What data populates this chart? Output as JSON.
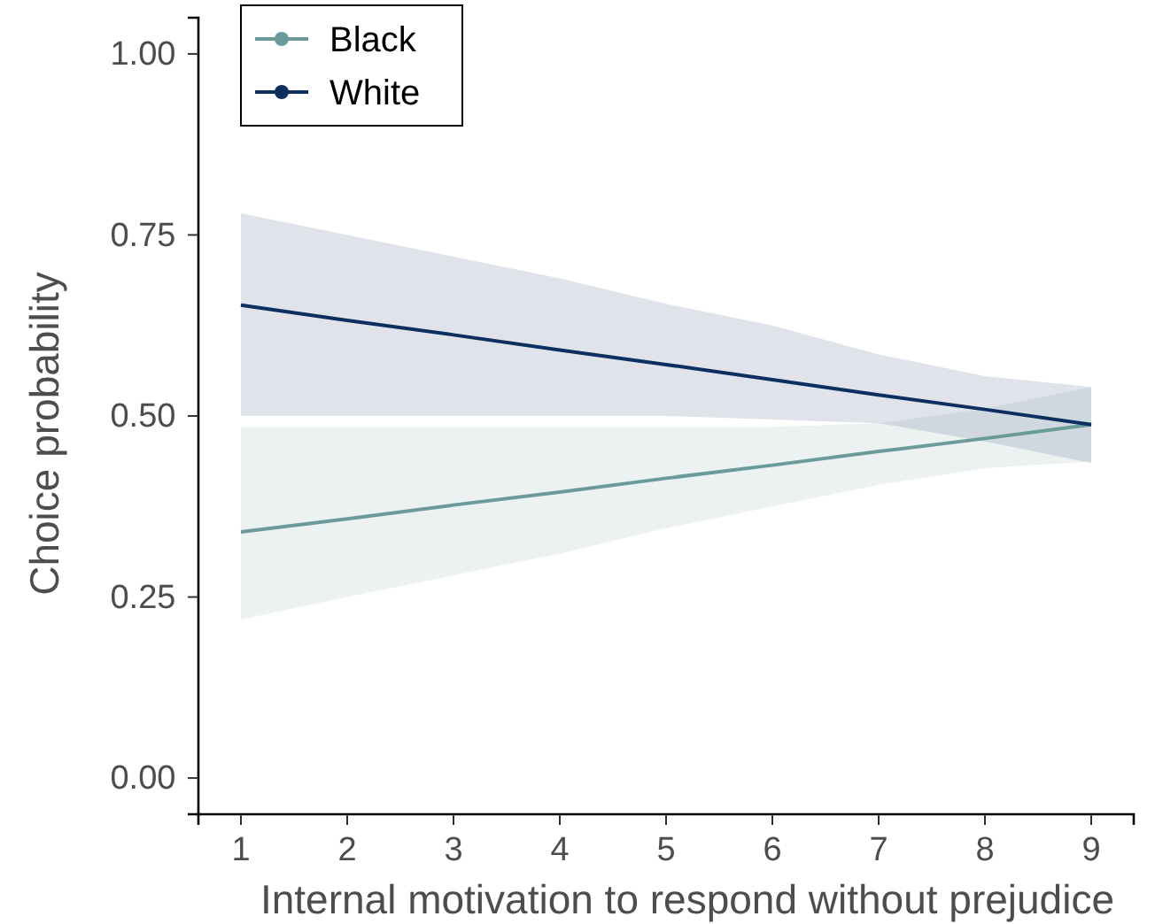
{
  "chart_data": {
    "type": "line",
    "xlabel": "Internal motivation to respond without prejudice",
    "ylabel": "Choice probability",
    "x": [
      1,
      2,
      3,
      4,
      5,
      6,
      7,
      8,
      9
    ],
    "xlim": [
      0.6,
      9.4
    ],
    "xticks": [
      1,
      2,
      3,
      4,
      5,
      6,
      7,
      8,
      9
    ],
    "ylim": [
      -0.05,
      1.05
    ],
    "yticks": [
      {
        "value": 0,
        "label": "0.00"
      },
      {
        "value": 0.25,
        "label": "0.25"
      },
      {
        "value": 0.5,
        "label": "0.50"
      },
      {
        "value": 0.75,
        "label": "0.75"
      },
      {
        "value": 1,
        "label": "1.00"
      }
    ],
    "grid": false,
    "legend": "top left",
    "series": [
      {
        "name": "Black",
        "color": "#6b9a9a",
        "values": [
          0.34,
          0.358,
          0.377,
          0.395,
          0.414,
          0.432,
          0.451,
          0.469,
          0.488
        ],
        "lower": [
          0.219,
          0.25,
          0.28,
          0.31,
          0.345,
          0.375,
          0.405,
          0.428,
          0.437
        ],
        "upper": [
          0.485,
          0.485,
          0.485,
          0.485,
          0.485,
          0.485,
          0.49,
          0.51,
          0.54
        ]
      },
      {
        "name": "White",
        "color": "#0c2f5f",
        "values": [
          0.653,
          0.632,
          0.612,
          0.591,
          0.571,
          0.55,
          0.529,
          0.509,
          0.488
        ],
        "lower": [
          0.5,
          0.5,
          0.5,
          0.5,
          0.5,
          0.495,
          0.49,
          0.465,
          0.435
        ],
        "upper": [
          0.78,
          0.75,
          0.72,
          0.69,
          0.655,
          0.625,
          0.585,
          0.555,
          0.54
        ]
      }
    ]
  }
}
